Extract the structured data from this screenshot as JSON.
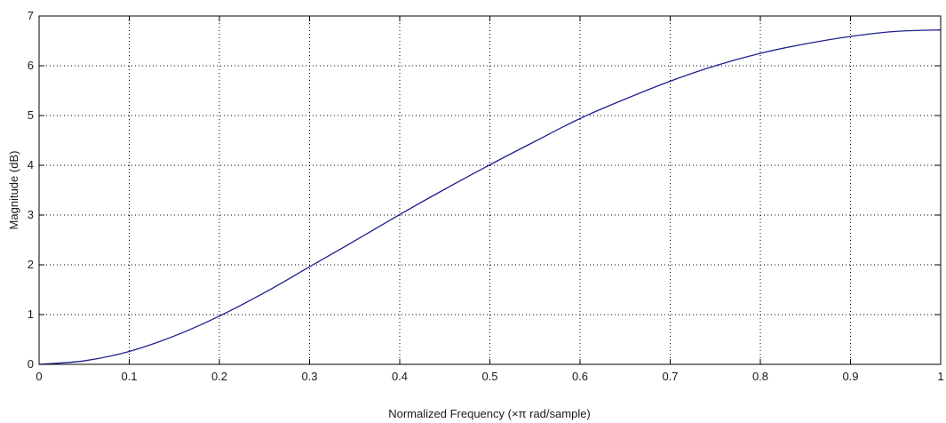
{
  "chart_data": {
    "type": "line",
    "title": "",
    "xlabel": "Normalized Frequency  (×π rad/sample)",
    "ylabel": "Magnitude (dB)",
    "xlim": [
      0,
      1
    ],
    "ylim": [
      0,
      7
    ],
    "grid": true,
    "line_color": "#1f1f8f",
    "x_ticks": [
      "0",
      "0.1",
      "0.2",
      "0.3",
      "0.4",
      "0.5",
      "0.6",
      "0.7",
      "0.8",
      "0.9",
      "1"
    ],
    "y_ticks": [
      "0",
      "1",
      "2",
      "3",
      "4",
      "5",
      "6",
      "7"
    ],
    "series": [
      {
        "x": [
          0,
          0.05,
          0.1,
          0.15,
          0.2,
          0.25,
          0.3,
          0.35,
          0.4,
          0.45,
          0.5,
          0.55,
          0.6,
          0.65,
          0.7,
          0.75,
          0.8,
          0.85,
          0.9,
          0.95,
          1.0
        ],
        "y": [
          0.0,
          0.07,
          0.26,
          0.57,
          0.97,
          1.44,
          1.96,
          2.48,
          3.01,
          3.52,
          4.01,
          4.48,
          4.94,
          5.33,
          5.69,
          6.0,
          6.25,
          6.44,
          6.59,
          6.69,
          6.72
        ]
      }
    ]
  }
}
